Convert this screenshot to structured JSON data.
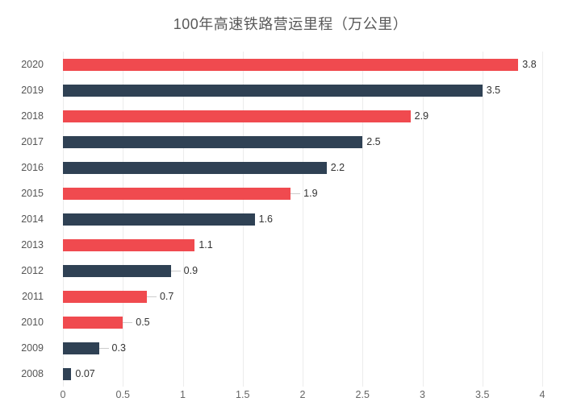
{
  "title": "100年高速铁路营运里程（万公里）",
  "chart_data": {
    "type": "bar",
    "orientation": "horizontal",
    "title": "100年高速铁路营运里程（万公里）",
    "xlabel": "",
    "ylabel": "",
    "categories": [
      "2020",
      "2019",
      "2018",
      "2017",
      "2016",
      "2015",
      "2014",
      "2013",
      "2012",
      "2011",
      "2010",
      "2009",
      "2008"
    ],
    "values": [
      3.8,
      3.5,
      2.9,
      2.5,
      2.2,
      1.9,
      1.6,
      1.1,
      0.9,
      0.7,
      0.5,
      0.3,
      0.07
    ],
    "value_labels": [
      "3.8",
      "3.5",
      "2.9",
      "2.5",
      "2.2",
      "1.9",
      "1.6",
      "1.1",
      "0.9",
      "0.7",
      "0.5",
      "0.3",
      "0.07"
    ],
    "bar_color_keys": [
      "red",
      "navy",
      "red",
      "navy",
      "navy",
      "red",
      "navy",
      "red",
      "navy",
      "red",
      "red",
      "navy",
      "navy"
    ],
    "leader_lines": [
      false,
      false,
      false,
      false,
      false,
      true,
      false,
      false,
      true,
      true,
      true,
      true,
      false
    ],
    "xlim": [
      0,
      4
    ],
    "x_ticks": [
      "0",
      "0.5",
      "1",
      "1.5",
      "2",
      "2.5",
      "3",
      "3.5",
      "4"
    ],
    "x_tick_values": [
      0,
      0.5,
      1,
      1.5,
      2,
      2.5,
      3,
      3.5,
      4
    ],
    "grid": true,
    "legend": "none",
    "colors": {
      "red": "#f04a4f",
      "navy": "#2f4154",
      "grid": "#ececec",
      "leader": "#cccccc",
      "title_text": "#595959",
      "category_text": "#555555",
      "value_text": "#333333",
      "tick_text": "#666666"
    }
  }
}
